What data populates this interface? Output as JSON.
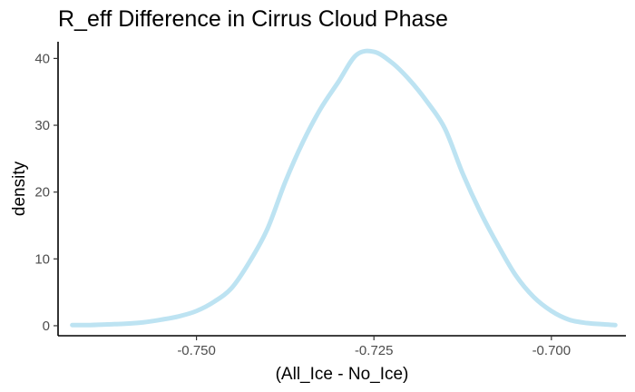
{
  "chart_data": {
    "type": "line",
    "title": "R_eff Difference in Cirrus Cloud Phase",
    "xlabel": "(All_Ice - No_Ice)",
    "ylabel": "density",
    "xlim": [
      -0.7695,
      -0.6895
    ],
    "ylim": [
      -1.5,
      42.5
    ],
    "x_ticks": [
      -0.75,
      -0.725,
      -0.7
    ],
    "x_tick_labels": [
      "-0.750",
      "-0.725",
      "-0.700"
    ],
    "y_ticks": [
      0,
      10,
      20,
      30,
      40
    ],
    "y_tick_labels": [
      "0",
      "10",
      "20",
      "30",
      "40"
    ],
    "grid": false,
    "legend": "none",
    "series": [
      {
        "color": "#bde3f2",
        "x": [
          -0.7675,
          -0.765,
          -0.7625,
          -0.76,
          -0.7575,
          -0.755,
          -0.7525,
          -0.75,
          -0.7475,
          -0.745,
          -0.7425,
          -0.74,
          -0.7375,
          -0.735,
          -0.7325,
          -0.73,
          -0.7275,
          -0.725,
          -0.7225,
          -0.72,
          -0.7175,
          -0.715,
          -0.7125,
          -0.71,
          -0.7075,
          -0.705,
          -0.7025,
          -0.7,
          -0.6975,
          -0.695,
          -0.6925,
          -0.691
        ],
        "y": [
          0.1,
          0.1,
          0.2,
          0.3,
          0.5,
          0.9,
          1.4,
          2.2,
          3.6,
          5.7,
          9.6,
          14.5,
          21.5,
          27.5,
          32.5,
          36.5,
          40.5,
          41.0,
          39.4,
          36.8,
          33.5,
          29.5,
          22.8,
          17.0,
          12.0,
          7.5,
          4.3,
          2.2,
          0.9,
          0.4,
          0.2,
          0.1
        ]
      }
    ]
  }
}
